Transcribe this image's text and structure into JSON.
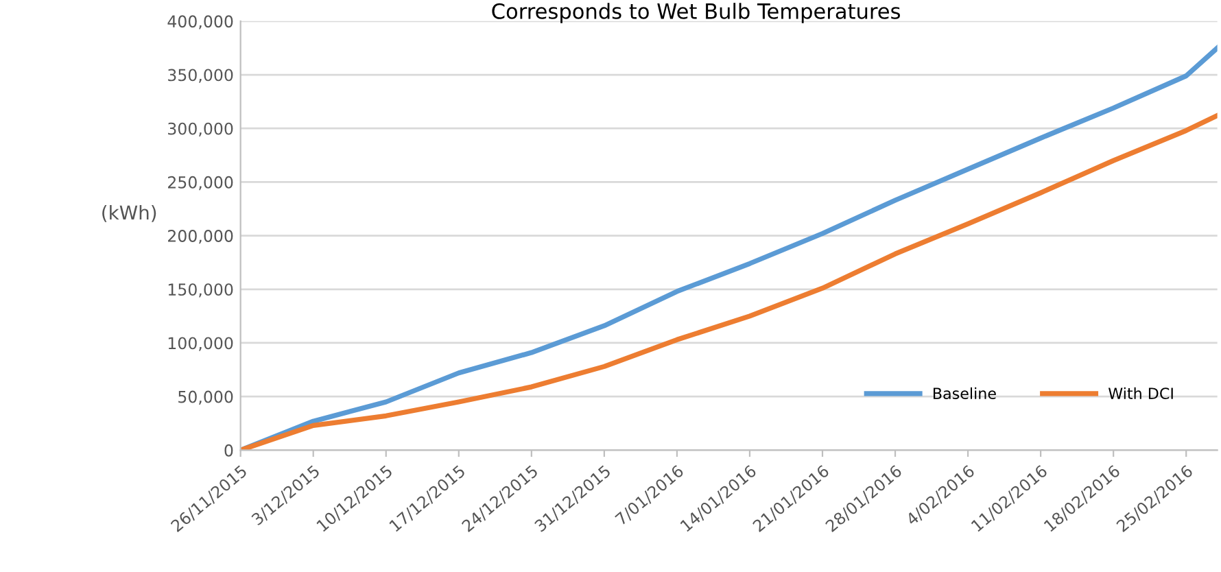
{
  "chart_data": {
    "type": "line",
    "title": "Corresponds to Wet Bulb Temperatures",
    "ylabel": "(kWh)",
    "x": [
      "2015-11-26",
      "2015-12-03",
      "2015-12-10",
      "2015-12-17",
      "2015-12-24",
      "2015-12-31",
      "2016-01-07",
      "2016-01-14",
      "2016-01-21",
      "2016-01-28",
      "2016-02-04",
      "2016-02-11",
      "2016-02-18",
      "2016-02-25",
      "2016-02-28"
    ],
    "series": [
      {
        "name": "Baseline",
        "color": "#5b9bd5",
        "values": [
          0,
          27000,
          45000,
          72000,
          91000,
          116000,
          148000,
          174000,
          202000,
          233000,
          262000,
          291000,
          319000,
          349000,
          375000
        ]
      },
      {
        "name": "With DCI",
        "color": "#ed7d31",
        "values": [
          0,
          23000,
          32000,
          45000,
          59000,
          78000,
          103000,
          125000,
          151000,
          183000,
          211000,
          240000,
          270000,
          298000,
          312000
        ]
      }
    ],
    "xlim": [
      "2015-11-26",
      "2016-02-28"
    ],
    "xticks": [
      {
        "value": "2015-11-26",
        "label": "26/11/2015"
      },
      {
        "value": "2015-12-03",
        "label": "3/12/2015"
      },
      {
        "value": "2015-12-10",
        "label": "10/12/2015"
      },
      {
        "value": "2015-12-17",
        "label": "17/12/2015"
      },
      {
        "value": "2015-12-24",
        "label": "24/12/2015"
      },
      {
        "value": "2015-12-31",
        "label": "31/12/2015"
      },
      {
        "value": "2016-01-07",
        "label": "7/01/2016"
      },
      {
        "value": "2016-01-14",
        "label": "14/01/2016"
      },
      {
        "value": "2016-01-21",
        "label": "21/01/2016"
      },
      {
        "value": "2016-01-28",
        "label": "28/01/2016"
      },
      {
        "value": "2016-02-04",
        "label": "4/02/2016"
      },
      {
        "value": "2016-02-11",
        "label": "11/02/2016"
      },
      {
        "value": "2016-02-18",
        "label": "18/02/2016"
      },
      {
        "value": "2016-02-25",
        "label": "25/02/2016"
      }
    ],
    "ylim": [
      0,
      400000
    ],
    "yticks": [
      {
        "value": 0,
        "label": "0"
      },
      {
        "value": 50000,
        "label": "50,000"
      },
      {
        "value": 100000,
        "label": "100,000"
      },
      {
        "value": 150000,
        "label": "150,000"
      },
      {
        "value": 200000,
        "label": "200,000"
      },
      {
        "value": 250000,
        "label": "250,000"
      },
      {
        "value": 300000,
        "label": "300,000"
      },
      {
        "value": 350000,
        "label": "350,000"
      },
      {
        "value": 400000,
        "label": "400,000"
      }
    ],
    "grid": "y",
    "legend": "bottom right",
    "marker": "none",
    "line_style": "solid"
  }
}
